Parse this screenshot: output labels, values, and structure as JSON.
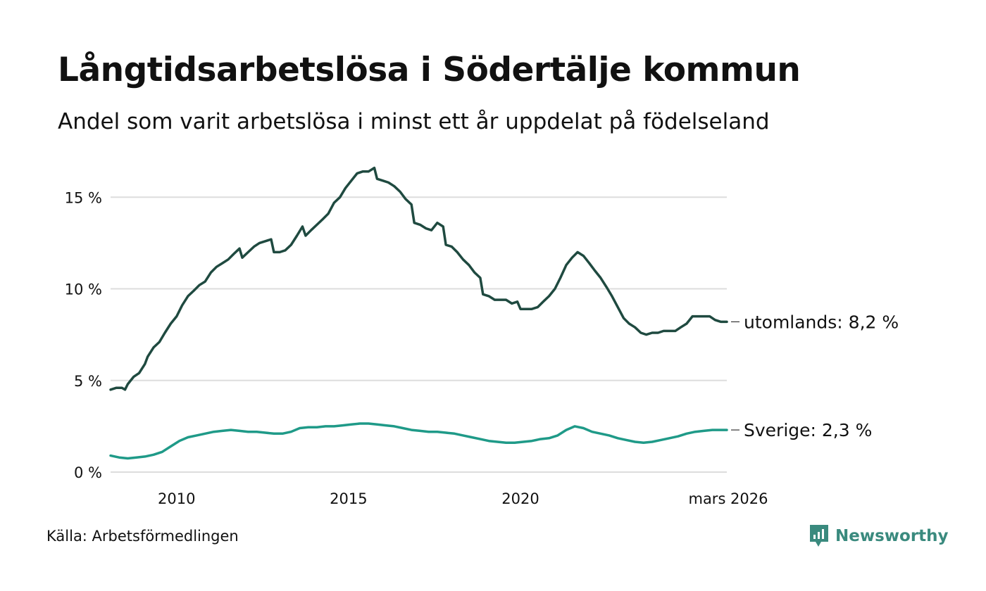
{
  "header": {
    "title": "Långtidsarbetslösa i Södertälje kommun",
    "subtitle": "Andel som varit arbetslösa i minst ett år uppdelat på födelseland"
  },
  "footer": {
    "source": "Källa: Arbetsförmedlingen",
    "brand": "Newsworthy"
  },
  "colors": {
    "utomlands": "#1f4a40",
    "sverige": "#1f9a88",
    "grid": "#dddddd",
    "brand": "#3a8a7e"
  },
  "chart_data": {
    "type": "line",
    "title": "Långtidsarbetslösa i Södertälje kommun",
    "subtitle": "Andel som varit arbetslösa i minst ett år uppdelat på födelseland",
    "xlabel": "",
    "ylabel": "",
    "x_range": [
      2008.25,
      2026.17
    ],
    "ylim": [
      0,
      16.7
    ],
    "y_ticks": [
      {
        "value": 0,
        "label": "0 %"
      },
      {
        "value": 5,
        "label": "5 %"
      },
      {
        "value": 10,
        "label": "10 %"
      },
      {
        "value": 15,
        "label": "15 %"
      }
    ],
    "x_ticks": [
      {
        "value": 2010.17,
        "label": "2010"
      },
      {
        "value": 2015.17,
        "label": "2015"
      },
      {
        "value": 2020.17,
        "label": "2020"
      },
      {
        "value": 2026.17,
        "label": "mars 2026"
      }
    ],
    "grid": true,
    "series": [
      {
        "name": "utomlands",
        "end_label": "utomlands: 8,2 %",
        "points": [
          [
            2008.25,
            4.5
          ],
          [
            2008.42,
            4.6
          ],
          [
            2008.58,
            4.6
          ],
          [
            2008.67,
            4.5
          ],
          [
            2008.75,
            4.8
          ],
          [
            2008.92,
            5.2
          ],
          [
            2009.08,
            5.4
          ],
          [
            2009.25,
            5.9
          ],
          [
            2009.33,
            6.3
          ],
          [
            2009.5,
            6.8
          ],
          [
            2009.67,
            7.1
          ],
          [
            2009.83,
            7.6
          ],
          [
            2010.0,
            8.1
          ],
          [
            2010.17,
            8.5
          ],
          [
            2010.33,
            9.1
          ],
          [
            2010.5,
            9.6
          ],
          [
            2010.67,
            9.9
          ],
          [
            2010.83,
            10.2
          ],
          [
            2011.0,
            10.4
          ],
          [
            2011.17,
            10.9
          ],
          [
            2011.33,
            11.2
          ],
          [
            2011.5,
            11.4
          ],
          [
            2011.67,
            11.6
          ],
          [
            2011.83,
            11.9
          ],
          [
            2012.0,
            12.2
          ],
          [
            2012.08,
            11.7
          ],
          [
            2012.25,
            12.0
          ],
          [
            2012.42,
            12.3
          ],
          [
            2012.58,
            12.5
          ],
          [
            2012.75,
            12.6
          ],
          [
            2012.92,
            12.7
          ],
          [
            2013.0,
            12.0
          ],
          [
            2013.17,
            12.0
          ],
          [
            2013.33,
            12.1
          ],
          [
            2013.5,
            12.4
          ],
          [
            2013.67,
            12.9
          ],
          [
            2013.83,
            13.4
          ],
          [
            2013.92,
            12.9
          ],
          [
            2014.08,
            13.2
          ],
          [
            2014.25,
            13.5
          ],
          [
            2014.42,
            13.8
          ],
          [
            2014.58,
            14.1
          ],
          [
            2014.75,
            14.7
          ],
          [
            2014.92,
            15.0
          ],
          [
            2015.08,
            15.5
          ],
          [
            2015.25,
            15.9
          ],
          [
            2015.42,
            16.3
          ],
          [
            2015.58,
            16.4
          ],
          [
            2015.75,
            16.4
          ],
          [
            2015.92,
            16.6
          ],
          [
            2016.0,
            16.0
          ],
          [
            2016.17,
            15.9
          ],
          [
            2016.33,
            15.8
          ],
          [
            2016.5,
            15.6
          ],
          [
            2016.67,
            15.3
          ],
          [
            2016.83,
            14.9
          ],
          [
            2017.0,
            14.6
          ],
          [
            2017.08,
            13.6
          ],
          [
            2017.25,
            13.5
          ],
          [
            2017.42,
            13.3
          ],
          [
            2017.58,
            13.2
          ],
          [
            2017.75,
            13.6
          ],
          [
            2017.92,
            13.4
          ],
          [
            2018.0,
            12.4
          ],
          [
            2018.17,
            12.3
          ],
          [
            2018.33,
            12.0
          ],
          [
            2018.5,
            11.6
          ],
          [
            2018.67,
            11.3
          ],
          [
            2018.83,
            10.9
          ],
          [
            2019.0,
            10.6
          ],
          [
            2019.08,
            9.7
          ],
          [
            2019.25,
            9.6
          ],
          [
            2019.42,
            9.4
          ],
          [
            2019.58,
            9.4
          ],
          [
            2019.75,
            9.4
          ],
          [
            2019.92,
            9.2
          ],
          [
            2020.08,
            9.3
          ],
          [
            2020.17,
            8.9
          ],
          [
            2020.33,
            8.9
          ],
          [
            2020.5,
            8.9
          ],
          [
            2020.67,
            9.0
          ],
          [
            2020.83,
            9.3
          ],
          [
            2021.0,
            9.6
          ],
          [
            2021.17,
            10.0
          ],
          [
            2021.33,
            10.6
          ],
          [
            2021.5,
            11.3
          ],
          [
            2021.67,
            11.7
          ],
          [
            2021.83,
            12.0
          ],
          [
            2022.0,
            11.8
          ],
          [
            2022.17,
            11.4
          ],
          [
            2022.33,
            11.0
          ],
          [
            2022.5,
            10.6
          ],
          [
            2022.67,
            10.1
          ],
          [
            2022.83,
            9.6
          ],
          [
            2023.0,
            9.0
          ],
          [
            2023.17,
            8.4
          ],
          [
            2023.33,
            8.1
          ],
          [
            2023.5,
            7.9
          ],
          [
            2023.67,
            7.6
          ],
          [
            2023.83,
            7.5
          ],
          [
            2024.0,
            7.6
          ],
          [
            2024.17,
            7.6
          ],
          [
            2024.33,
            7.7
          ],
          [
            2024.5,
            7.7
          ],
          [
            2024.67,
            7.7
          ],
          [
            2024.83,
            7.9
          ],
          [
            2025.0,
            8.1
          ],
          [
            2025.17,
            8.5
          ],
          [
            2025.33,
            8.5
          ],
          [
            2025.5,
            8.5
          ],
          [
            2025.67,
            8.5
          ],
          [
            2025.83,
            8.3
          ],
          [
            2026.0,
            8.2
          ],
          [
            2026.17,
            8.2
          ]
        ]
      },
      {
        "name": "Sverige",
        "end_label": "Sverige: 2,3 %",
        "points": [
          [
            2008.25,
            0.9
          ],
          [
            2008.5,
            0.8
          ],
          [
            2008.75,
            0.75
          ],
          [
            2009.0,
            0.8
          ],
          [
            2009.25,
            0.85
          ],
          [
            2009.5,
            0.95
          ],
          [
            2009.75,
            1.1
          ],
          [
            2010.0,
            1.4
          ],
          [
            2010.25,
            1.7
          ],
          [
            2010.5,
            1.9
          ],
          [
            2010.75,
            2.0
          ],
          [
            2011.0,
            2.1
          ],
          [
            2011.25,
            2.2
          ],
          [
            2011.5,
            2.25
          ],
          [
            2011.75,
            2.3
          ],
          [
            2012.0,
            2.25
          ],
          [
            2012.25,
            2.2
          ],
          [
            2012.5,
            2.2
          ],
          [
            2012.75,
            2.15
          ],
          [
            2013.0,
            2.1
          ],
          [
            2013.25,
            2.1
          ],
          [
            2013.5,
            2.2
          ],
          [
            2013.75,
            2.4
          ],
          [
            2014.0,
            2.45
          ],
          [
            2014.25,
            2.45
          ],
          [
            2014.5,
            2.5
          ],
          [
            2014.75,
            2.5
          ],
          [
            2015.0,
            2.55
          ],
          [
            2015.25,
            2.6
          ],
          [
            2015.5,
            2.65
          ],
          [
            2015.75,
            2.65
          ],
          [
            2016.0,
            2.6
          ],
          [
            2016.25,
            2.55
          ],
          [
            2016.5,
            2.5
          ],
          [
            2016.75,
            2.4
          ],
          [
            2017.0,
            2.3
          ],
          [
            2017.25,
            2.25
          ],
          [
            2017.5,
            2.2
          ],
          [
            2017.75,
            2.2
          ],
          [
            2018.0,
            2.15
          ],
          [
            2018.25,
            2.1
          ],
          [
            2018.5,
            2.0
          ],
          [
            2018.75,
            1.9
          ],
          [
            2019.0,
            1.8
          ],
          [
            2019.25,
            1.7
          ],
          [
            2019.5,
            1.65
          ],
          [
            2019.75,
            1.6
          ],
          [
            2020.0,
            1.6
          ],
          [
            2020.25,
            1.65
          ],
          [
            2020.5,
            1.7
          ],
          [
            2020.75,
            1.8
          ],
          [
            2021.0,
            1.85
          ],
          [
            2021.25,
            2.0
          ],
          [
            2021.5,
            2.3
          ],
          [
            2021.75,
            2.5
          ],
          [
            2022.0,
            2.4
          ],
          [
            2022.25,
            2.2
          ],
          [
            2022.5,
            2.1
          ],
          [
            2022.75,
            2.0
          ],
          [
            2023.0,
            1.85
          ],
          [
            2023.25,
            1.75
          ],
          [
            2023.5,
            1.65
          ],
          [
            2023.75,
            1.6
          ],
          [
            2024.0,
            1.65
          ],
          [
            2024.25,
            1.75
          ],
          [
            2024.5,
            1.85
          ],
          [
            2024.75,
            1.95
          ],
          [
            2025.0,
            2.1
          ],
          [
            2025.25,
            2.2
          ],
          [
            2025.5,
            2.25
          ],
          [
            2025.75,
            2.3
          ],
          [
            2026.0,
            2.3
          ],
          [
            2026.17,
            2.3
          ]
        ]
      }
    ]
  }
}
